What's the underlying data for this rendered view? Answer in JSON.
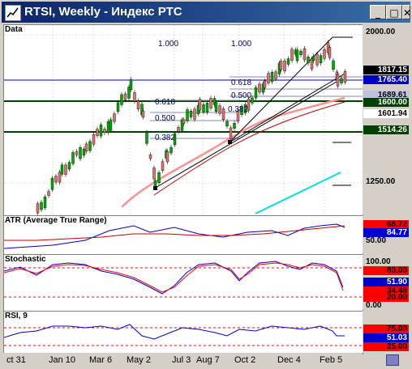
{
  "window": {
    "title": "RTSI, Weekly - Индекс РТС",
    "icon": "chart-icon",
    "buttons": {
      "minimize": "_",
      "maximize": "□",
      "close": "✕"
    }
  },
  "panels": {
    "data": {
      "title": "Data"
    },
    "atr": {
      "title": "ATR (Average True Range)"
    },
    "stochastic": {
      "title": "Stochastic"
    },
    "rsi": {
      "title": "RSI, 9"
    }
  },
  "price_axis": {
    "ticks": [
      "2000.00",
      "1250.00"
    ],
    "badges": [
      {
        "label": "1817.15",
        "bg": "#000000",
        "fg": "#ffffff"
      },
      {
        "label": "1765.40",
        "bg": "#0000cc",
        "fg": "#ffffff"
      },
      {
        "label": "1689.61",
        "bg": "#c0c0e0",
        "fg": "#000000"
      },
      {
        "label": "1600.00",
        "bg": "#004000",
        "fg": "#ffffff"
      },
      {
        "label": "1601.94",
        "bg": "#ffffff",
        "fg": "#000000"
      },
      {
        "label": "1514.26",
        "bg": "#004000",
        "fg": "#ffffff"
      }
    ]
  },
  "fib_labels": [
    "1.000",
    "1.000",
    "0.618",
    "0.500",
    "0.618",
    "0.500",
    "0.382",
    "0.382"
  ],
  "atr_axis": {
    "badges": [
      {
        "label": "68.72",
        "bg": "#ff0000",
        "fg": "#000000"
      },
      {
        "label": "84.77",
        "bg": "#0000cc",
        "fg": "#ffffff"
      }
    ],
    "ticks": [
      "50.00"
    ]
  },
  "stoch_axis": {
    "ticks": [
      "100.00",
      "0.00"
    ],
    "badges": [
      {
        "label": "80.00",
        "bg": "#ff0000",
        "fg": "#000000"
      },
      {
        "label": "51.90",
        "bg": "#0000cc",
        "fg": "#ffffff"
      },
      {
        "label": "20.00",
        "bg": "#ff0000",
        "fg": "#000000"
      },
      {
        "label": "34.48",
        "bg": "#ff0000",
        "fg": "#000000"
      }
    ]
  },
  "rsi_axis": {
    "badges": [
      {
        "label": "75.00",
        "bg": "#ff0000",
        "fg": "#000000"
      },
      {
        "label": "51.03",
        "bg": "#0000cc",
        "fg": "#ffffff"
      },
      {
        "label": "25.00",
        "bg": "#ff0000",
        "fg": "#000000"
      }
    ]
  },
  "x_axis": {
    "labels": [
      "ct 31",
      "Jan 10",
      "Mar 6",
      "May 2",
      "Jul 3",
      "Aug 7",
      "Oct 2",
      "Dec 4",
      "Feb 5"
    ]
  },
  "colors": {
    "up": "#00aa00",
    "down": "#e07070",
    "ma_slow": "#ff9090",
    "ma_fast": "#c00000",
    "trend": "#00e0e0"
  }
}
